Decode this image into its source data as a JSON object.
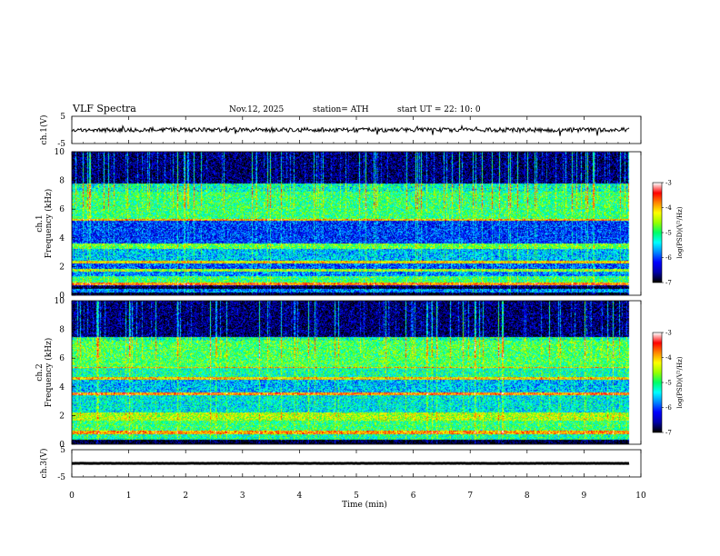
{
  "header": {
    "title": "VLF  Spectra",
    "date": "Nov.12, 2025",
    "station": "station= ATH",
    "start_ut": "start  UT  =    22: 10: 0"
  },
  "colors": {
    "waveform": "#000000",
    "colormap": [
      "#000000",
      "#0000aa",
      "#0000ff",
      "#0088ff",
      "#00ffff",
      "#00ff66",
      "#99ff00",
      "#ffff00",
      "#ff8800",
      "#ff0000",
      "#ffffff"
    ]
  },
  "chart_data": [
    {
      "type": "line",
      "title": "ch.1 waveform",
      "ylabel": "ch.1(V)",
      "ylim": [
        -5,
        5
      ],
      "yticks": [
        "5",
        "-5"
      ],
      "xlim": [
        0,
        10
      ],
      "mean": 0,
      "noise_amplitude": 0.8,
      "data_end_min": 9.8
    },
    {
      "type": "heatmap",
      "title": "ch.1 spectrogram",
      "ylabel_channel": "ch.1",
      "ylabel": "Frequency  (kHz)",
      "ylim": [
        0,
        10
      ],
      "yticks": [
        "0",
        "2",
        "4",
        "6",
        "8",
        "10"
      ],
      "xlim": [
        0,
        10
      ],
      "data_end_min": 9.8,
      "colorbar": {
        "label": "log(PSD)(V²/Hz)",
        "range": [
          -7,
          -3
        ],
        "ticks": [
          "-3",
          "-4",
          "-5",
          "-6",
          "-7"
        ]
      },
      "bands": [
        {
          "freq_khz": [
            0.0,
            0.15
          ],
          "level": -7.0
        },
        {
          "freq_khz": [
            0.15,
            0.4
          ],
          "level": -5.8
        },
        {
          "freq_khz": [
            0.4,
            0.6
          ],
          "level": -7.0
        },
        {
          "freq_khz": [
            0.7,
            0.85
          ],
          "level": -3.8
        },
        {
          "freq_khz": [
            0.85,
            1.3
          ],
          "level": -5.0
        },
        {
          "freq_khz": [
            1.3,
            1.6
          ],
          "level": -5.8
        },
        {
          "freq_khz": [
            1.6,
            1.8
          ],
          "level": -4.6
        },
        {
          "freq_khz": [
            1.8,
            2.2
          ],
          "level": -6.0
        },
        {
          "freq_khz": [
            2.2,
            2.4
          ],
          "level": -4.2
        },
        {
          "freq_khz": [
            2.4,
            3.2
          ],
          "level": -5.6
        },
        {
          "freq_khz": [
            3.2,
            3.6
          ],
          "level": -4.8
        },
        {
          "freq_khz": [
            3.6,
            5.2
          ],
          "level": -6.1
        },
        {
          "freq_khz": [
            5.2,
            5.3
          ],
          "level": -4.0
        },
        {
          "freq_khz": [
            5.3,
            7.8
          ],
          "level": -5.0
        },
        {
          "freq_khz": [
            7.8,
            10.0
          ],
          "level": -6.5
        }
      ]
    },
    {
      "type": "heatmap",
      "title": "ch.2 spectrogram",
      "ylabel_channel": "ch.2",
      "ylabel": "Frequency  (kHz)",
      "ylim": [
        0,
        10
      ],
      "yticks": [
        "0",
        "2",
        "4",
        "6",
        "8",
        "10"
      ],
      "xlim": [
        0,
        10
      ],
      "data_end_min": 9.8,
      "colorbar": {
        "label": "log(PSD)(V²/Hz)",
        "range": [
          -7,
          -3
        ],
        "ticks": [
          "-3",
          "-4",
          "-5",
          "-6",
          "-7"
        ]
      },
      "bands": [
        {
          "freq_khz": [
            0.0,
            0.3
          ],
          "level": -7.0
        },
        {
          "freq_khz": [
            0.3,
            0.7
          ],
          "level": -5.2
        },
        {
          "freq_khz": [
            0.7,
            0.9
          ],
          "level": -3.9
        },
        {
          "freq_khz": [
            0.9,
            1.6
          ],
          "level": -5.0
        },
        {
          "freq_khz": [
            1.6,
            2.2
          ],
          "level": -4.5
        },
        {
          "freq_khz": [
            2.2,
            3.4
          ],
          "level": -5.4
        },
        {
          "freq_khz": [
            3.4,
            3.6
          ],
          "level": -3.8
        },
        {
          "freq_khz": [
            3.6,
            4.5
          ],
          "level": -5.6
        },
        {
          "freq_khz": [
            4.5,
            4.7
          ],
          "level": -4.1
        },
        {
          "freq_khz": [
            4.7,
            5.3
          ],
          "level": -5.2
        },
        {
          "freq_khz": [
            5.3,
            5.4
          ],
          "level": -4.0
        },
        {
          "freq_khz": [
            5.4,
            7.5
          ],
          "level": -4.9
        },
        {
          "freq_khz": [
            7.5,
            10.0
          ],
          "level": -6.5
        }
      ]
    },
    {
      "type": "line",
      "title": "ch.3 waveform",
      "ylabel": "ch.3(V)",
      "ylim": [
        -5,
        5
      ],
      "yticks": [
        "5",
        "-5"
      ],
      "xlim": [
        0,
        10
      ],
      "mean": 0,
      "noise_amplitude": 0.05,
      "data_end_min": 9.8
    }
  ],
  "x_axis": {
    "label": "Time  (min)",
    "ticks": [
      "0",
      "1",
      "2",
      "3",
      "4",
      "5",
      "6",
      "7",
      "8",
      "9",
      "10"
    ]
  }
}
